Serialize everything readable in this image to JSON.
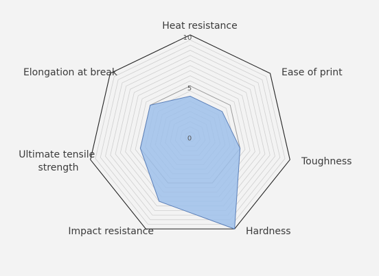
{
  "chart_data": {
    "type": "radar",
    "title": "",
    "axes": [
      "Heat resistance",
      "Ease of print",
      "Toughness",
      "Hardness",
      "Impact resistance",
      "Ultimate tensile strength",
      "Elongation at break"
    ],
    "axis_label_lines": [
      [
        "Heat resistance"
      ],
      [
        "Ease of print"
      ],
      [
        "Toughness"
      ],
      [
        "Hardness"
      ],
      [
        "Impact resistance"
      ],
      [
        "Ultimate tensile",
        "strength"
      ],
      [
        "Elongation at break"
      ]
    ],
    "range": [
      0,
      10
    ],
    "tick_labels": [
      "0",
      "5",
      "10"
    ],
    "series": [
      {
        "values": [
          4,
          4,
          5,
          10,
          7,
          5,
          5
        ]
      }
    ],
    "grid": true,
    "colors": {
      "fill": "#9ec0ea",
      "stroke": "#5b7fb8",
      "outer_ring": "#222222",
      "grid": "#cfcfcf",
      "inner_ring": "#9a9a9a"
    }
  }
}
